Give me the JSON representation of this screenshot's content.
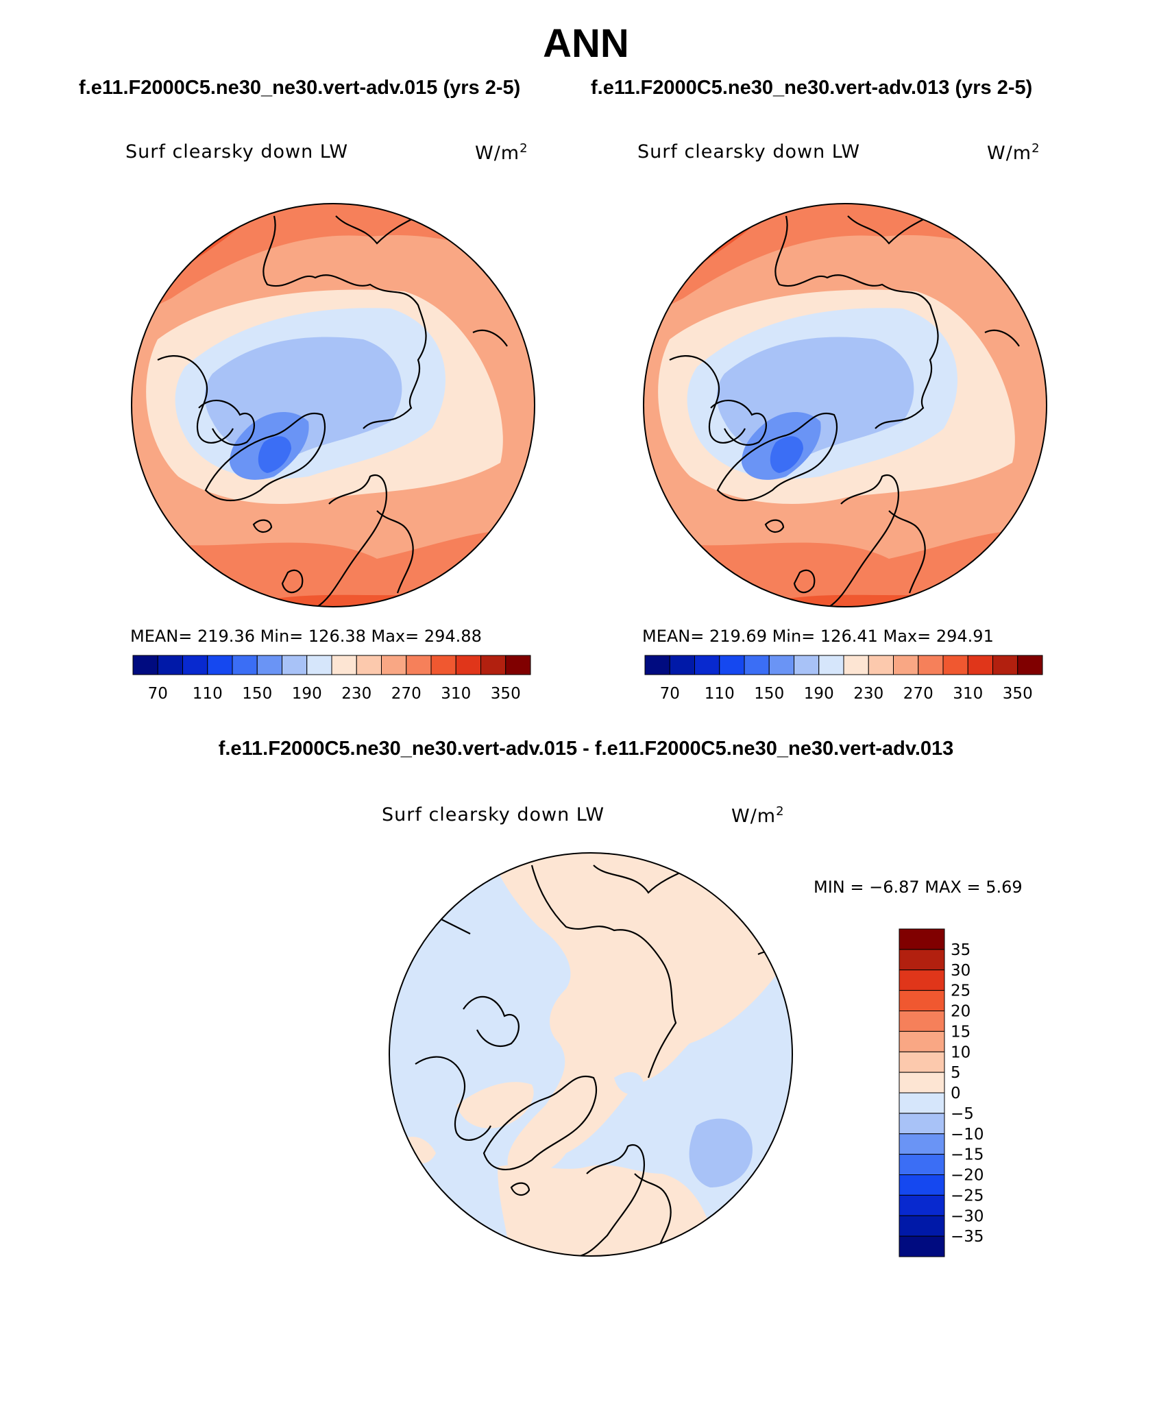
{
  "season": "ANN",
  "case1_title": "f.e11.F2000C5.ne30_ne30.vert-adv.015 (yrs 2-5)",
  "case2_title": "f.e11.F2000C5.ne30_ne30.vert-adv.013 (yrs 2-5)",
  "diff_title": "f.e11.F2000C5.ne30_ne30.vert-adv.015 - f.e11.F2000C5.ne30_ne30.vert-adv.013",
  "panel1": {
    "variable": "Surf clearsky down LW",
    "units_prefix": "W/m",
    "units_sup": "2",
    "stats": "MEAN= 219.36   Min= 126.38   Max= 294.88"
  },
  "panel2": {
    "variable": "Surf clearsky down LW",
    "units_prefix": "W/m",
    "units_sup": "2",
    "stats": "MEAN= 219.69   Min= 126.41   Max= 294.91"
  },
  "panel3": {
    "variable": "Surf clearsky down LW",
    "units_prefix": "W/m",
    "units_sup": "2",
    "stats": "MIN =   −6.87 MAX =    5.69"
  },
  "abs_colorbar": {
    "colors": [
      "#000b80",
      "#0019a8",
      "#0829cf",
      "#1548f0",
      "#3b6ef5",
      "#6a94f5",
      "#a8c2f7",
      "#d6e6fb",
      "#fde5d3",
      "#fcc9ad",
      "#f9a784",
      "#f6805a",
      "#f05830",
      "#e0361a",
      "#b2200f",
      "#800000"
    ],
    "labels": [
      "70",
      "110",
      "150",
      "190",
      "230",
      "270",
      "310",
      "350"
    ]
  },
  "diff_colorbar": {
    "colors_top_to_bottom": [
      "#800000",
      "#b2200f",
      "#e0361a",
      "#f05830",
      "#f6805a",
      "#f9a784",
      "#fcc9ad",
      "#fde5d3",
      "#d6e6fb",
      "#a8c2f7",
      "#6a94f5",
      "#3b6ef5",
      "#1548f0",
      "#0829cf",
      "#0019a8",
      "#000b80"
    ],
    "labels": [
      "35",
      "30",
      "25",
      "20",
      "15",
      "10",
      "5",
      "0",
      "−5",
      "−10",
      "−15",
      "−20",
      "−25",
      "−30",
      "−35"
    ]
  }
}
